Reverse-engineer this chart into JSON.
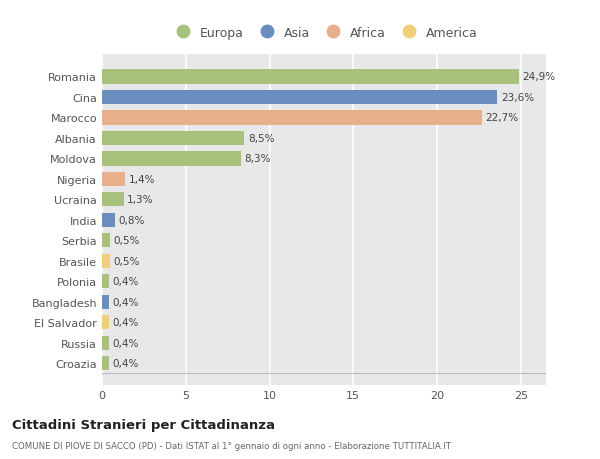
{
  "categories": [
    "Romania",
    "Cina",
    "Marocco",
    "Albania",
    "Moldova",
    "Nigeria",
    "Ucraina",
    "India",
    "Serbia",
    "Brasile",
    "Polonia",
    "Bangladesh",
    "El Salvador",
    "Russia",
    "Croazia"
  ],
  "values": [
    24.9,
    23.6,
    22.7,
    8.5,
    8.3,
    1.4,
    1.3,
    0.8,
    0.5,
    0.5,
    0.4,
    0.4,
    0.4,
    0.4,
    0.4
  ],
  "labels": [
    "24,9%",
    "23,6%",
    "22,7%",
    "8,5%",
    "8,3%",
    "1,4%",
    "1,3%",
    "0,8%",
    "0,5%",
    "0,5%",
    "0,4%",
    "0,4%",
    "0,4%",
    "0,4%",
    "0,4%"
  ],
  "continents": [
    "Europa",
    "Asia",
    "Africa",
    "Europa",
    "Europa",
    "Africa",
    "Europa",
    "Asia",
    "Europa",
    "America",
    "Europa",
    "Asia",
    "America",
    "Europa",
    "Europa"
  ],
  "continent_colors": {
    "Europa": "#a8c17c",
    "Asia": "#6a8fbf",
    "Africa": "#e8b08a",
    "America": "#f0cf7a"
  },
  "legend_order": [
    "Europa",
    "Asia",
    "Africa",
    "America"
  ],
  "title": "Cittadini Stranieri per Cittadinanza",
  "subtitle": "COMUNE DI PIOVE DI SACCO (PD) - Dati ISTAT al 1° gennaio di ogni anno - Elaborazione TUTTITALIA.IT",
  "xlim": [
    0,
    26.5
  ],
  "xticks": [
    0,
    5,
    10,
    15,
    20,
    25
  ],
  "background_color": "#ffffff",
  "plot_bg_color": "#e8e8e8",
  "grid_color": "#ffffff",
  "bar_height": 0.7
}
